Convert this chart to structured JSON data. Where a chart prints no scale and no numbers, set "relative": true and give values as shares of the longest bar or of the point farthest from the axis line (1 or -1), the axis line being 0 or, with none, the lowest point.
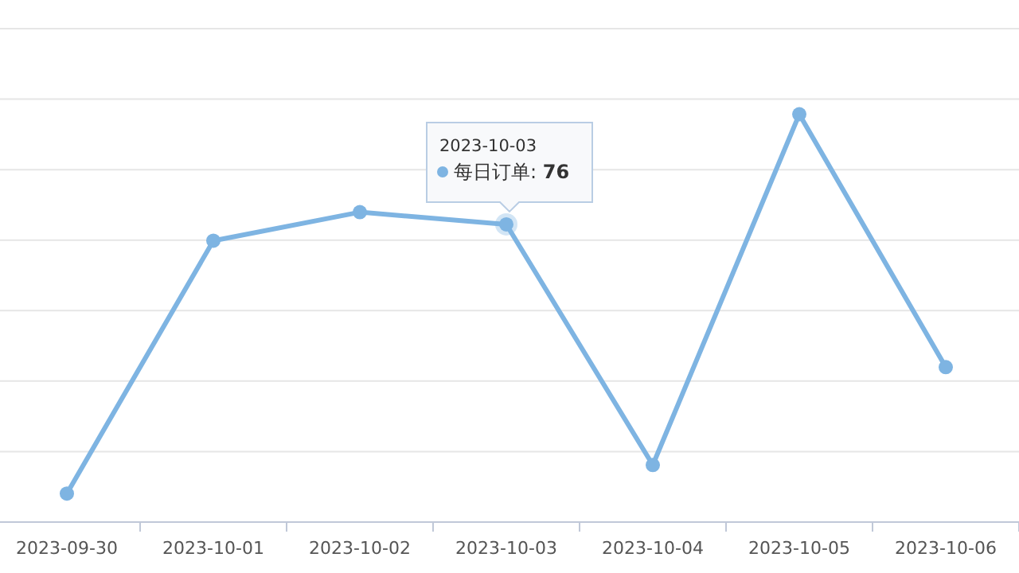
{
  "chart_data": {
    "type": "line",
    "relative": true,
    "grid": "y",
    "marker": "circle",
    "line_style": "solid",
    "categories": [
      "2023-09-30",
      "2023-10-01",
      "2023-10-02",
      "2023-10-03",
      "2023-10-04",
      "2023-10-05",
      "2023-10-06"
    ],
    "series": [
      {
        "color": "#7eb4e2",
        "values": [
          0.07,
          0.69,
          0.76,
          0.73,
          0.14,
          1,
          0.38
        ]
      }
    ],
    "annotations": [
      "2023-10-03",
      "每日订单: **76**"
    ]
  }
}
